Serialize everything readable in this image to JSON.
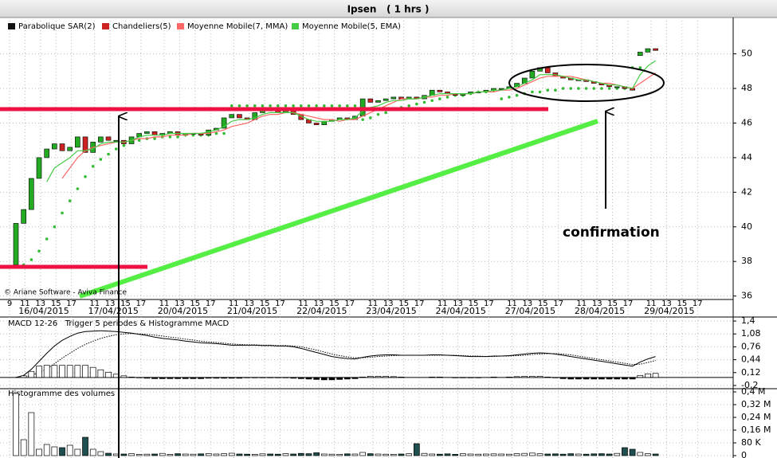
{
  "header": {
    "title": "Ipsen   ( 1 hrs )"
  },
  "chart_data": [
    {
      "type": "candlestick",
      "series": [
        {
          "name": "Parabolique SAR(2)",
          "kind": "dots",
          "color": "#111111",
          "mark_color": "#33bb33",
          "values": [
            null,
            37.8,
            38.1,
            38.6,
            39.3,
            40.0,
            40.8,
            41.5,
            42.2,
            42.9,
            43.5,
            43.9,
            44.2,
            44.5,
            44.7,
            44.9,
            45.0,
            45.1,
            45.1,
            45.2,
            45.2,
            45.2,
            45.3,
            45.3,
            45.3,
            45.3,
            45.4,
            45.4,
            47.0,
            47.0,
            47.0,
            47.0,
            47.0,
            47.0,
            47.0,
            47.0,
            47.0,
            47.0,
            47.0,
            47.0,
            47.0,
            47.0,
            47.0,
            47.0,
            47.0,
            46.2,
            46.3,
            46.5,
            46.6,
            46.8,
            46.9,
            47.0,
            47.1,
            47.2,
            47.3,
            47.4,
            47.5,
            47.6,
            47.6,
            47.7,
            47.8,
            47.8,
            47.9,
            47.4,
            47.5,
            47.6,
            47.7,
            47.8,
            47.8,
            47.9,
            47.9,
            48.0,
            48.0,
            48.0,
            48.0,
            48.0,
            48.0,
            48.0,
            48.0,
            48.0,
            49.2,
            49.2,
            null,
            null
          ]
        },
        {
          "name": "Chandeliers(5)",
          "kind": "candles",
          "color": "#cc2222",
          "up_color": "#22aa22",
          "open": [
            37.8,
            40.2,
            41.0,
            42.8,
            44.0,
            44.5,
            44.8,
            44.4,
            44.6,
            45.2,
            44.3,
            44.9,
            45.2,
            45.0,
            45.0,
            44.8,
            45.2,
            45.4,
            45.5,
            45.3,
            45.4,
            45.5,
            45.3,
            45.4,
            45.4,
            45.3,
            45.6,
            45.7,
            46.3,
            46.5,
            46.3,
            46.2,
            46.6,
            46.8,
            46.7,
            46.6,
            46.7,
            46.5,
            46.2,
            46.0,
            45.9,
            46.1,
            46.2,
            46.3,
            46.2,
            46.4,
            47.4,
            47.2,
            47.3,
            47.4,
            47.5,
            47.4,
            47.5,
            47.4,
            47.6,
            47.9,
            47.8,
            47.7,
            47.6,
            47.7,
            47.8,
            47.8,
            47.9,
            48.0,
            48.0,
            48.1,
            48.3,
            48.6,
            49.0,
            49.2,
            48.9,
            48.7,
            48.6,
            48.5,
            48.5,
            48.4,
            48.3,
            48.2,
            48.1,
            48.1,
            48.0,
            49.9,
            50.1,
            50.3
          ],
          "close": [
            40.2,
            41.0,
            42.8,
            44.0,
            44.5,
            44.8,
            44.4,
            44.6,
            45.2,
            44.3,
            44.9,
            45.2,
            45.0,
            45.0,
            44.8,
            45.2,
            45.4,
            45.5,
            45.3,
            45.4,
            45.5,
            45.3,
            45.4,
            45.4,
            45.3,
            45.6,
            45.7,
            46.3,
            46.5,
            46.3,
            46.2,
            46.6,
            46.8,
            46.7,
            46.6,
            46.7,
            46.5,
            46.2,
            46.0,
            45.9,
            46.1,
            46.2,
            46.3,
            46.2,
            46.4,
            47.4,
            47.2,
            47.3,
            47.4,
            47.5,
            47.4,
            47.5,
            47.4,
            47.6,
            47.9,
            47.8,
            47.7,
            47.6,
            47.7,
            47.8,
            47.8,
            47.9,
            48.0,
            48.0,
            48.1,
            48.3,
            48.6,
            49.0,
            49.2,
            48.9,
            48.7,
            48.6,
            48.5,
            48.5,
            48.4,
            48.3,
            48.2,
            48.1,
            48.1,
            48.0,
            47.9,
            50.1,
            50.3,
            50.2
          ]
        },
        {
          "name": "Moyenne Mobile(7, MMA)",
          "kind": "line",
          "color": "#ff6666",
          "values": [
            null,
            null,
            null,
            null,
            null,
            null,
            42.8,
            43.4,
            44.0,
            44.4,
            44.6,
            44.7,
            44.8,
            44.9,
            44.9,
            45.0,
            45.1,
            45.1,
            45.2,
            45.2,
            45.3,
            45.3,
            45.3,
            45.4,
            45.4,
            45.4,
            45.5,
            45.6,
            45.8,
            45.9,
            46.0,
            46.2,
            46.4,
            46.5,
            46.5,
            46.6,
            46.6,
            46.5,
            46.4,
            46.3,
            46.2,
            46.2,
            46.1,
            46.2,
            46.2,
            46.4,
            46.6,
            46.8,
            47.0,
            47.2,
            47.4,
            47.4,
            47.4,
            47.5,
            47.5,
            47.6,
            47.6,
            47.7,
            47.7,
            47.7,
            47.8,
            47.8,
            47.8,
            47.9,
            47.9,
            48.0,
            48.2,
            48.4,
            48.6,
            48.7,
            48.7,
            48.7,
            48.7,
            48.6,
            48.5,
            48.4,
            48.3,
            48.3,
            48.2,
            48.1,
            48.0,
            48.3,
            48.6,
            48.9
          ]
        },
        {
          "name": "Moyenne Mobile(5, EMA)",
          "kind": "line",
          "color": "#44cc44",
          "values": [
            null,
            null,
            null,
            null,
            42.6,
            43.4,
            43.7,
            44.0,
            44.4,
            44.4,
            44.5,
            44.8,
            44.9,
            44.9,
            44.9,
            45.0,
            45.2,
            45.3,
            45.3,
            45.3,
            45.4,
            45.4,
            45.4,
            45.4,
            45.4,
            45.5,
            45.6,
            45.8,
            46.1,
            46.2,
            46.2,
            46.3,
            46.5,
            46.6,
            46.6,
            46.6,
            46.6,
            46.4,
            46.2,
            46.1,
            46.1,
            46.1,
            46.2,
            46.2,
            46.3,
            46.7,
            46.9,
            47.0,
            47.2,
            47.3,
            47.3,
            47.4,
            47.4,
            47.5,
            47.6,
            47.7,
            47.7,
            47.7,
            47.7,
            47.7,
            47.8,
            47.8,
            47.9,
            47.9,
            48.0,
            48.1,
            48.3,
            48.5,
            48.8,
            48.8,
            48.8,
            48.7,
            48.6,
            48.5,
            48.5,
            48.4,
            48.3,
            48.2,
            48.2,
            48.1,
            48.0,
            48.8,
            49.3,
            49.6
          ]
        }
      ],
      "ylim": [
        35.8,
        52.1
      ],
      "yticks": [
        36,
        38,
        40,
        42,
        44,
        46,
        48,
        50
      ],
      "grid": true,
      "days": [
        "16/04/2015",
        "17/04/2015",
        "20/04/2015",
        "21/04/2015",
        "22/04/2015",
        "23/04/2015",
        "24/04/2015",
        "27/04/2015",
        "28/04/2015",
        "29/04/2015"
      ],
      "hour_labels": [
        "9",
        "11",
        "13",
        "15",
        "17"
      ],
      "annotations": [
        "confirmation",
        "© Ariane Software - Aviva Finance"
      ]
    },
    {
      "type": "macd",
      "title": "MACD 12-26   Trigger 5 periodes & Histogramme MACD",
      "series": [
        {
          "style": "solid",
          "color": "#000000",
          "values": [
            0.0,
            0.05,
            0.2,
            0.4,
            0.6,
            0.78,
            0.92,
            1.02,
            1.1,
            1.14,
            1.15,
            1.16,
            1.15,
            1.14,
            1.12,
            1.1,
            1.07,
            1.04,
            1.0,
            0.97,
            0.95,
            0.93,
            0.9,
            0.88,
            0.86,
            0.85,
            0.84,
            0.82,
            0.8,
            0.8,
            0.8,
            0.8,
            0.79,
            0.79,
            0.78,
            0.78,
            0.76,
            0.72,
            0.67,
            0.62,
            0.57,
            0.52,
            0.49,
            0.47,
            0.46,
            0.5,
            0.53,
            0.55,
            0.56,
            0.56,
            0.55,
            0.55,
            0.55,
            0.55,
            0.56,
            0.56,
            0.55,
            0.54,
            0.53,
            0.52,
            0.52,
            0.52,
            0.53,
            0.53,
            0.54,
            0.56,
            0.58,
            0.6,
            0.61,
            0.6,
            0.58,
            0.55,
            0.52,
            0.49,
            0.46,
            0.43,
            0.4,
            0.37,
            0.34,
            0.31,
            0.28,
            0.38,
            0.46,
            0.52
          ]
        },
        {
          "style": "dotted",
          "color": "#000000",
          "values": [
            0.0,
            0.01,
            0.05,
            0.12,
            0.22,
            0.34,
            0.48,
            0.6,
            0.72,
            0.82,
            0.9,
            0.97,
            1.02,
            1.06,
            1.08,
            1.09,
            1.08,
            1.07,
            1.05,
            1.03,
            1.0,
            0.98,
            0.95,
            0.93,
            0.9,
            0.88,
            0.87,
            0.85,
            0.83,
            0.82,
            0.81,
            0.81,
            0.8,
            0.8,
            0.79,
            0.79,
            0.78,
            0.76,
            0.72,
            0.68,
            0.63,
            0.58,
            0.54,
            0.51,
            0.49,
            0.49,
            0.5,
            0.52,
            0.53,
            0.54,
            0.55,
            0.55,
            0.55,
            0.55,
            0.55,
            0.55,
            0.55,
            0.55,
            0.54,
            0.53,
            0.53,
            0.52,
            0.52,
            0.53,
            0.53,
            0.54,
            0.55,
            0.57,
            0.58,
            0.59,
            0.59,
            0.58,
            0.56,
            0.53,
            0.5,
            0.47,
            0.44,
            0.41,
            0.38,
            0.35,
            0.32,
            0.33,
            0.37,
            0.42
          ]
        },
        {
          "style": "histogram",
          "color": "#000000",
          "values": [
            0,
            0.04,
            0.15,
            0.28,
            0.3,
            0.3,
            0.3,
            0.3,
            0.3,
            0.3,
            0.25,
            0.19,
            0.13,
            0.08,
            0.04,
            0.01,
            -0.01,
            -0.02,
            -0.03,
            -0.03,
            -0.03,
            -0.03,
            -0.03,
            -0.03,
            -0.03,
            -0.02,
            -0.02,
            -0.02,
            -0.02,
            -0.02,
            -0.01,
            -0.01,
            -0.01,
            -0.01,
            -0.01,
            -0.01,
            -0.02,
            -0.03,
            -0.04,
            -0.05,
            -0.06,
            -0.06,
            -0.05,
            -0.04,
            -0.03,
            0.01,
            0.03,
            0.03,
            0.03,
            0.02,
            0.01,
            0.0,
            0.0,
            0.0,
            0.01,
            0.01,
            0.0,
            -0.01,
            -0.01,
            -0.01,
            -0.01,
            0.0,
            0.01,
            0.0,
            0.01,
            0.02,
            0.03,
            0.03,
            0.03,
            0.01,
            -0.01,
            -0.03,
            -0.04,
            -0.04,
            -0.04,
            -0.04,
            -0.04,
            -0.04,
            -0.04,
            -0.04,
            -0.04,
            0.05,
            0.09,
            0.1
          ]
        }
      ],
      "ylim": [
        -0.28,
        1.5
      ],
      "yticks": [
        {
          "value": 1.4,
          "label": "1,4"
        },
        {
          "value": 1.08,
          "label": "1,08"
        },
        {
          "value": 0.76,
          "label": "0,76"
        },
        {
          "value": 0.44,
          "label": "0,44"
        },
        {
          "value": 0.12,
          "label": "0,12"
        },
        {
          "value": -0.2,
          "label": "-0,2"
        }
      ]
    },
    {
      "type": "volume",
      "title": "Histogramme des volumes",
      "color": "#ffffff",
      "down_color": "#1f4f4f",
      "values": [
        390000,
        100000,
        270000,
        40000,
        70000,
        55000,
        50000,
        65000,
        40000,
        115000,
        40000,
        25000,
        15000,
        10000,
        10000,
        12000,
        8000,
        9000,
        10000,
        14000,
        8000,
        12000,
        10000,
        9000,
        11000,
        13000,
        10000,
        12000,
        15000,
        10000,
        9000,
        8000,
        11000,
        10000,
        9000,
        12000,
        10000,
        14000,
        12000,
        18000,
        10000,
        9000,
        8000,
        11000,
        10000,
        20000,
        12000,
        10000,
        9000,
        8000,
        10000,
        12000,
        75000,
        14000,
        10000,
        9000,
        11000,
        8000,
        12000,
        10000,
        9000,
        10000,
        11000,
        10000,
        9000,
        12000,
        14000,
        16000,
        12000,
        10000,
        11000,
        9000,
        12000,
        10000,
        9000,
        11000,
        12000,
        10000,
        14000,
        50000,
        40000,
        20000,
        12000,
        10000
      ],
      "ylim": [
        -15000,
        420000
      ],
      "yticks": [
        {
          "value": 400000,
          "label": "0,4 M"
        },
        {
          "value": 320000,
          "label": "0,32 M"
        },
        {
          "value": 240000,
          "label": "0,24 M"
        },
        {
          "value": 160000,
          "label": "0,16 M"
        },
        {
          "value": 80000,
          "label": "80 K"
        },
        0
      ]
    }
  ]
}
